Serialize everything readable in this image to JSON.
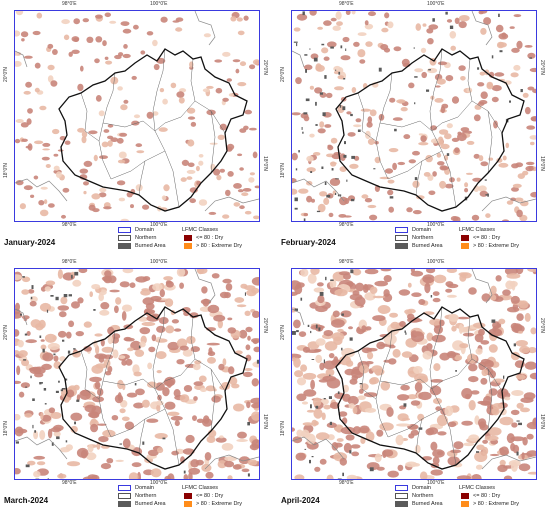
{
  "panels": [
    {
      "month": "January-2024"
    },
    {
      "month": "February-2024"
    },
    {
      "month": "March-2024"
    },
    {
      "month": "April-2024"
    }
  ],
  "ticks": {
    "lon_98": "98°0'E",
    "lon_100": "100°0'E",
    "lat_20": "20°0'N",
    "lat_18": "18°0'N"
  },
  "legend": {
    "domain": "Domain",
    "northern": "Northern",
    "burned": "Burned Area",
    "classes_title": "LFMC Classes",
    "dry": "<= 80 : Dry",
    "extreme_dry": "> 80  : Extreme Dry"
  },
  "colors": {
    "domain_border": "#3a3adf",
    "burned_area": "#5a5a5a",
    "dry": "#8b0000",
    "extreme_dry": "#ff8c1a",
    "lfmc_fill": "#c9857a"
  },
  "coverage": {
    "January-2024": 0.22,
    "February-2024": 0.33,
    "March-2024": 0.58,
    "April-2024": 0.72
  },
  "burned_coverage": {
    "January-2024": 0.0,
    "February-2024": 0.08,
    "March-2024": 0.06,
    "April-2024": 0.05
  }
}
